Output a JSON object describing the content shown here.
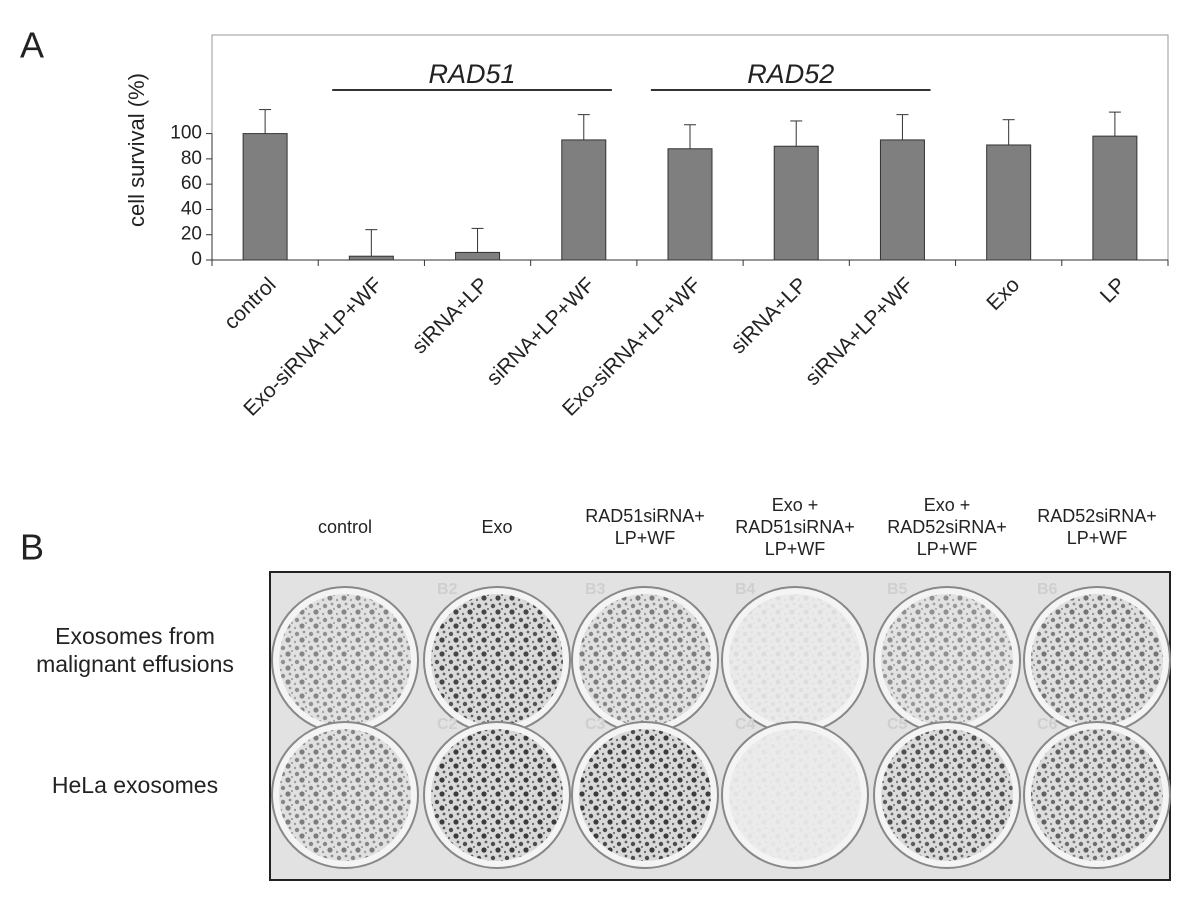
{
  "chart_data": {
    "type": "bar",
    "panel_label": "A",
    "ylabel": "cell survival (%)",
    "categories": [
      "control",
      "Exo-siRNA+LP+WF",
      "siRNA+LP",
      "siRNA+LP+WF",
      "Exo-siRNA+LP+WF",
      "siRNA+LP",
      "siRNA+LP+WF",
      "Exo",
      "LP"
    ],
    "values": [
      100,
      3,
      6,
      95,
      88,
      90,
      95,
      91,
      98
    ],
    "errors": [
      19,
      21,
      19,
      20,
      19,
      20,
      20,
      20,
      19
    ],
    "color": "#7f7f7f",
    "ylim": [
      0,
      178
    ],
    "yticks": [
      0,
      20,
      40,
      60,
      80,
      100
    ],
    "groups": [
      {
        "label": "RAD51",
        "members": [
          1,
          2,
          3
        ]
      },
      {
        "label": "RAD52",
        "members": [
          4,
          5,
          6
        ]
      }
    ]
  },
  "panel_b": {
    "panel_label": "B",
    "columns": [
      [
        "control"
      ],
      [
        "Exo"
      ],
      [
        "RAD51siRNA+",
        "LP+WF"
      ],
      [
        "Exo +",
        "RAD51siRNA+",
        "LP+WF"
      ],
      [
        "Exo +",
        "RAD52siRNA+",
        "LP+WF"
      ],
      [
        "RAD52siRNA+",
        "LP+WF"
      ]
    ],
    "rows": [
      [
        "Exosomes from",
        "malignant effusions"
      ],
      [
        "HeLa exosomes"
      ]
    ],
    "well_labels": [
      [
        null,
        "B2",
        "B3",
        "B4",
        "B5",
        "B6"
      ],
      [
        null,
        "C2",
        "C3",
        "C4",
        "C5",
        "C6"
      ]
    ]
  }
}
